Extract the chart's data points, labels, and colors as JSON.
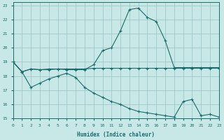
{
  "xlabel": "Humidex (Indice chaleur)",
  "background_color": "#c8e8e8",
  "grid_color": "#a0c8c8",
  "line_color": "#1a6b6b",
  "xlim": [
    0,
    23
  ],
  "ylim": [
    15,
    23.2
  ],
  "xticks": [
    0,
    1,
    2,
    3,
    4,
    5,
    6,
    7,
    8,
    9,
    10,
    11,
    12,
    13,
    14,
    15,
    16,
    17,
    18,
    19,
    20,
    21,
    22,
    23
  ],
  "yticks": [
    15,
    16,
    17,
    18,
    19,
    20,
    21,
    22,
    23
  ],
  "line1_y": [
    19.0,
    18.3,
    18.5,
    18.45,
    18.45,
    18.5,
    18.45,
    18.45,
    18.45,
    18.8,
    19.8,
    20.0,
    21.2,
    22.7,
    22.8,
    22.15,
    21.85,
    20.5,
    18.6,
    18.6,
    18.6,
    18.6,
    18.6,
    18.6
  ],
  "line2_y": [
    19.0,
    18.3,
    18.5,
    18.45,
    18.5,
    18.5,
    18.5,
    18.5,
    18.5,
    18.55,
    18.55,
    18.55,
    18.55,
    18.55,
    18.55,
    18.55,
    18.55,
    18.55,
    18.55,
    18.55,
    18.55,
    18.55,
    18.55,
    18.55
  ],
  "line3_y": [
    19.0,
    18.3,
    17.2,
    17.5,
    17.8,
    18.0,
    18.2,
    17.9,
    17.2,
    16.8,
    16.5,
    16.2,
    16.0,
    15.7,
    15.5,
    15.4,
    15.3,
    15.2,
    15.1,
    16.2,
    16.35,
    15.2,
    15.3,
    15.1
  ]
}
